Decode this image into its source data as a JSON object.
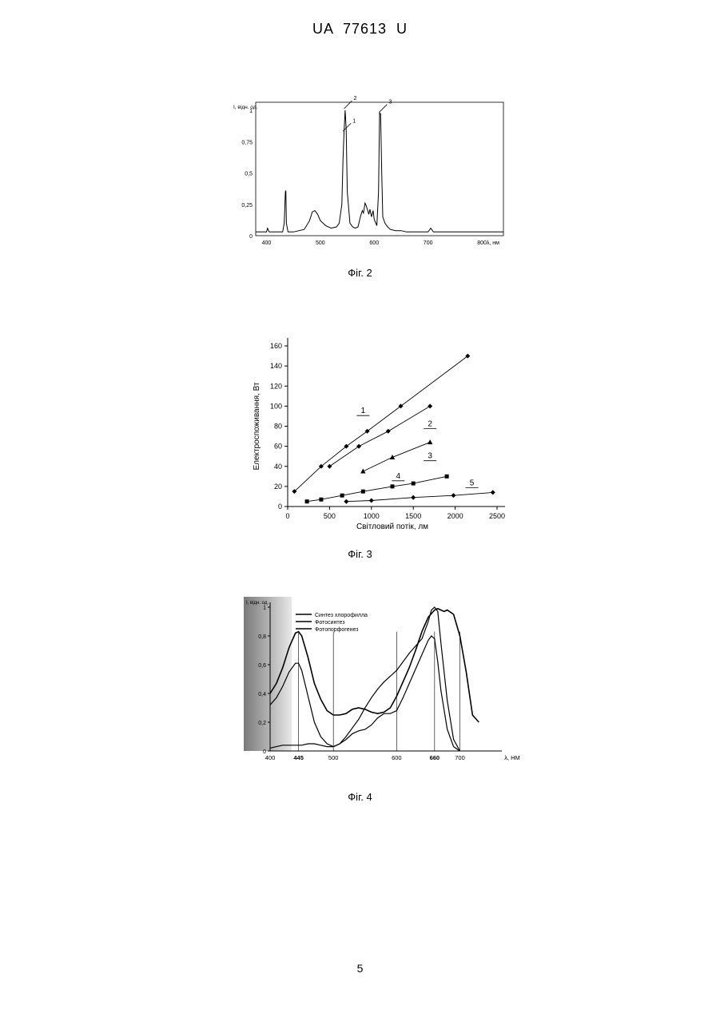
{
  "header": "UA 77613 U",
  "page_number": "5",
  "chart_data": [
    {
      "type": "line",
      "caption": "Фіг. 2",
      "ylabel": "I, відн. од.",
      "xlabel": "λ, нм",
      "xlim": [
        380,
        840
      ],
      "ylim": [
        0,
        1
      ],
      "x_ticks": [
        "400",
        "500",
        "600",
        "700",
        "800"
      ],
      "y_ticks": [
        "0",
        "0,25",
        "0,5",
        "0,75",
        "1"
      ],
      "peak_labels": [
        {
          "text": "1",
          "x": 545,
          "y": 0.82
        },
        {
          "text": "2",
          "x": 547,
          "y": 1.0
        },
        {
          "text": "3",
          "x": 612,
          "y": 0.97
        }
      ],
      "series": [
        {
          "x": [
            380,
            400,
            402,
            405,
            408,
            415,
            430,
            433,
            435,
            436,
            437,
            440,
            450,
            470,
            480,
            485,
            490,
            495,
            500,
            510,
            520,
            530,
            535,
            540,
            542,
            544,
            546,
            548,
            550,
            555,
            560,
            565,
            570,
            575,
            578,
            580,
            583,
            585,
            588,
            590,
            592,
            595,
            598,
            600,
            605,
            608,
            610,
            612,
            614,
            616,
            620,
            625,
            630,
            640,
            650,
            660,
            680,
            700,
            705,
            710,
            720,
            740,
            760,
            780,
            800,
            820,
            840
          ],
          "y": [
            0.03,
            0.03,
            0.06,
            0.03,
            0.03,
            0.03,
            0.03,
            0.1,
            0.35,
            0.36,
            0.1,
            0.03,
            0.03,
            0.05,
            0.12,
            0.19,
            0.2,
            0.17,
            0.12,
            0.08,
            0.06,
            0.07,
            0.1,
            0.25,
            0.6,
            0.82,
            1.0,
            0.85,
            0.35,
            0.1,
            0.07,
            0.06,
            0.07,
            0.16,
            0.2,
            0.18,
            0.26,
            0.24,
            0.2,
            0.17,
            0.21,
            0.15,
            0.2,
            0.13,
            0.08,
            0.35,
            0.98,
            0.97,
            0.5,
            0.15,
            0.1,
            0.07,
            0.05,
            0.04,
            0.04,
            0.03,
            0.03,
            0.03,
            0.06,
            0.03,
            0.03,
            0.03,
            0.03,
            0.03,
            0.03,
            0.03,
            0.03
          ]
        }
      ]
    },
    {
      "type": "scatter",
      "caption": "Фіг. 3",
      "xlabel": "Світловий потік, лм",
      "ylabel": "Електроспоживання, Вт",
      "xlim": [
        0,
        2500
      ],
      "ylim": [
        0,
        160
      ],
      "x_ticks": [
        "0",
        "500",
        "1000",
        "1500",
        "2000",
        "2500"
      ],
      "y_ticks": [
        "0",
        "20",
        "40",
        "60",
        "80",
        "100",
        "120",
        "140",
        "160"
      ],
      "series": [
        {
          "name": "1",
          "marker": "diamond",
          "label_x": 900,
          "label_y": 93,
          "x": [
            80,
            400,
            700,
            950,
            1350,
            2150
          ],
          "y": [
            15,
            40,
            60,
            75,
            100,
            150
          ]
        },
        {
          "name": "2",
          "marker": "diamond",
          "label_x": 1700,
          "label_y": 80,
          "x": [
            500,
            850,
            1200,
            1700
          ],
          "y": [
            40,
            60,
            75,
            100
          ]
        },
        {
          "name": "3",
          "marker": "triangle",
          "label_x": 1700,
          "label_y": 48,
          "x": [
            900,
            1250,
            1700
          ],
          "y": [
            35,
            49,
            64
          ]
        },
        {
          "name": "4",
          "marker": "square",
          "label_x": 1320,
          "label_y": 28,
          "x": [
            230,
            400,
            650,
            900,
            1250,
            1500,
            1900
          ],
          "y": [
            5,
            7,
            11,
            15,
            20,
            23,
            30
          ]
        },
        {
          "name": "5",
          "marker": "diamond",
          "label_x": 2200,
          "label_y": 21,
          "x": [
            700,
            1000,
            1500,
            1980,
            2450
          ],
          "y": [
            5,
            6,
            9,
            11,
            14
          ]
        }
      ]
    },
    {
      "type": "line",
      "caption": "Фіг. 4",
      "ylabel": "I, відн. од.",
      "xlabel": "λ, НМ",
      "xlim": [
        400,
        760
      ],
      "ylim": [
        0,
        1
      ],
      "x_ticks": [
        "400",
        "445",
        "500",
        "600",
        "660",
        "700"
      ],
      "y_ticks": [
        "0",
        "0,2",
        "0,4",
        "0,6",
        "0,8",
        "1"
      ],
      "vlines": [
        445,
        500,
        600,
        660,
        700
      ],
      "series": [
        {
          "name": "Синтез хлорофилла",
          "x": [
            400,
            410,
            420,
            430,
            440,
            445,
            450,
            460,
            470,
            480,
            490,
            500,
            510,
            520,
            530,
            540,
            550,
            560,
            570,
            580,
            590,
            600,
            610,
            620,
            630,
            640,
            650,
            660,
            665,
            670,
            675,
            680,
            690,
            700,
            710,
            720,
            730
          ],
          "y": [
            0.4,
            0.47,
            0.58,
            0.72,
            0.82,
            0.83,
            0.8,
            0.65,
            0.47,
            0.36,
            0.28,
            0.25,
            0.25,
            0.26,
            0.29,
            0.3,
            0.29,
            0.27,
            0.26,
            0.27,
            0.3,
            0.38,
            0.48,
            0.58,
            0.7,
            0.83,
            0.93,
            0.98,
            0.99,
            0.98,
            0.97,
            0.98,
            0.95,
            0.8,
            0.55,
            0.25,
            0.2
          ]
        },
        {
          "name": "Фотосинтез",
          "x": [
            400,
            410,
            420,
            430,
            440,
            445,
            450,
            460,
            470,
            480,
            490,
            500,
            510,
            520,
            530,
            540,
            550,
            560,
            570,
            580,
            590,
            600,
            610,
            620,
            630,
            640,
            650,
            655,
            660,
            665,
            670,
            680,
            690,
            700
          ],
          "y": [
            0.32,
            0.37,
            0.45,
            0.55,
            0.61,
            0.61,
            0.56,
            0.38,
            0.2,
            0.1,
            0.05,
            0.03,
            0.05,
            0.08,
            0.12,
            0.14,
            0.15,
            0.18,
            0.23,
            0.26,
            0.26,
            0.28,
            0.37,
            0.47,
            0.57,
            0.67,
            0.77,
            0.8,
            0.78,
            0.62,
            0.42,
            0.15,
            0.03,
            0.0
          ]
        },
        {
          "name": "Фотопорфогенез",
          "x": [
            400,
            410,
            420,
            430,
            440,
            450,
            460,
            470,
            480,
            490,
            500,
            510,
            520,
            530,
            540,
            550,
            560,
            570,
            580,
            590,
            600,
            610,
            620,
            630,
            640,
            650,
            655,
            660,
            665,
            670,
            680,
            690,
            700
          ],
          "y": [
            0.02,
            0.03,
            0.04,
            0.04,
            0.04,
            0.04,
            0.05,
            0.05,
            0.04,
            0.03,
            0.03,
            0.05,
            0.1,
            0.16,
            0.22,
            0.3,
            0.37,
            0.43,
            0.48,
            0.52,
            0.56,
            0.62,
            0.68,
            0.73,
            0.78,
            0.9,
            0.98,
            1.0,
            0.97,
            0.75,
            0.35,
            0.08,
            0.0
          ]
        }
      ]
    }
  ]
}
